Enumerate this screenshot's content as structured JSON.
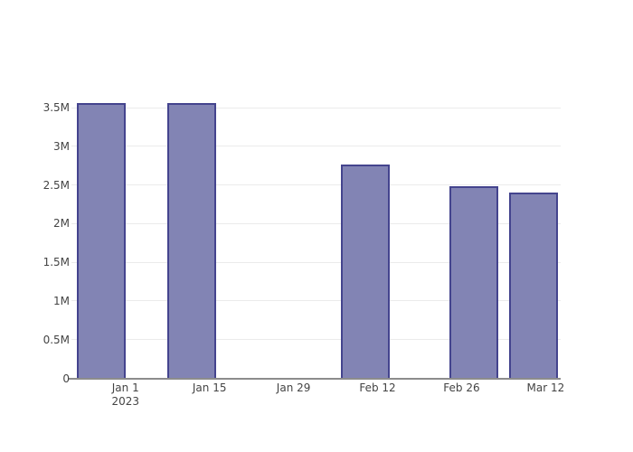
{
  "page": {
    "background": "#ffffff"
  },
  "chart_data": {
    "type": "bar",
    "title": "",
    "xlabel": "",
    "ylabel": "",
    "legend_position": "none",
    "grid": true,
    "series": [
      {
        "name": "value",
        "x_dates": [
          "2022-12-28",
          "2023-01-12",
          "2023-02-10",
          "2023-02-28",
          "2023-03-10"
        ],
        "values": [
          3560000,
          3560000,
          2760000,
          2490000,
          2400000
        ]
      }
    ],
    "x_axis": {
      "type": "date",
      "range": [
        "2022-12-23T00:00:00",
        "2023-03-14T12:00:00"
      ],
      "ticks": [
        {
          "date": "2023-01-01T00:00:00",
          "lines": [
            "Jan 1",
            "2023"
          ]
        },
        {
          "date": "2023-01-15T00:00:00",
          "lines": [
            "Jan 15"
          ]
        },
        {
          "date": "2023-01-29T00:00:00",
          "lines": [
            "Jan 29"
          ]
        },
        {
          "date": "2023-02-12T00:00:00",
          "lines": [
            "Feb 12"
          ]
        },
        {
          "date": "2023-02-26T00:00:00",
          "lines": [
            "Feb 26"
          ]
        },
        {
          "date": "2023-03-12T00:00:00",
          "lines": [
            "Mar 12"
          ]
        }
      ]
    },
    "y_axis": {
      "range": [
        0,
        3900000
      ],
      "ticks": [
        {
          "value": 0,
          "label": "0"
        },
        {
          "value": 500000,
          "label": "0.5M"
        },
        {
          "value": 1000000,
          "label": "1M"
        },
        {
          "value": 1500000,
          "label": "1.5M"
        },
        {
          "value": 2000000,
          "label": "2M"
        },
        {
          "value": 2500000,
          "label": "2.5M"
        },
        {
          "value": 3000000,
          "label": "3M"
        },
        {
          "value": 3500000,
          "label": "3.5M"
        }
      ]
    },
    "colors": {
      "bar_fill": "#8284B4",
      "bar_border": "#44448E",
      "gridline": "#EBEBEB",
      "axis_line": "#8C8C8C",
      "tick_text": "#444444"
    }
  }
}
